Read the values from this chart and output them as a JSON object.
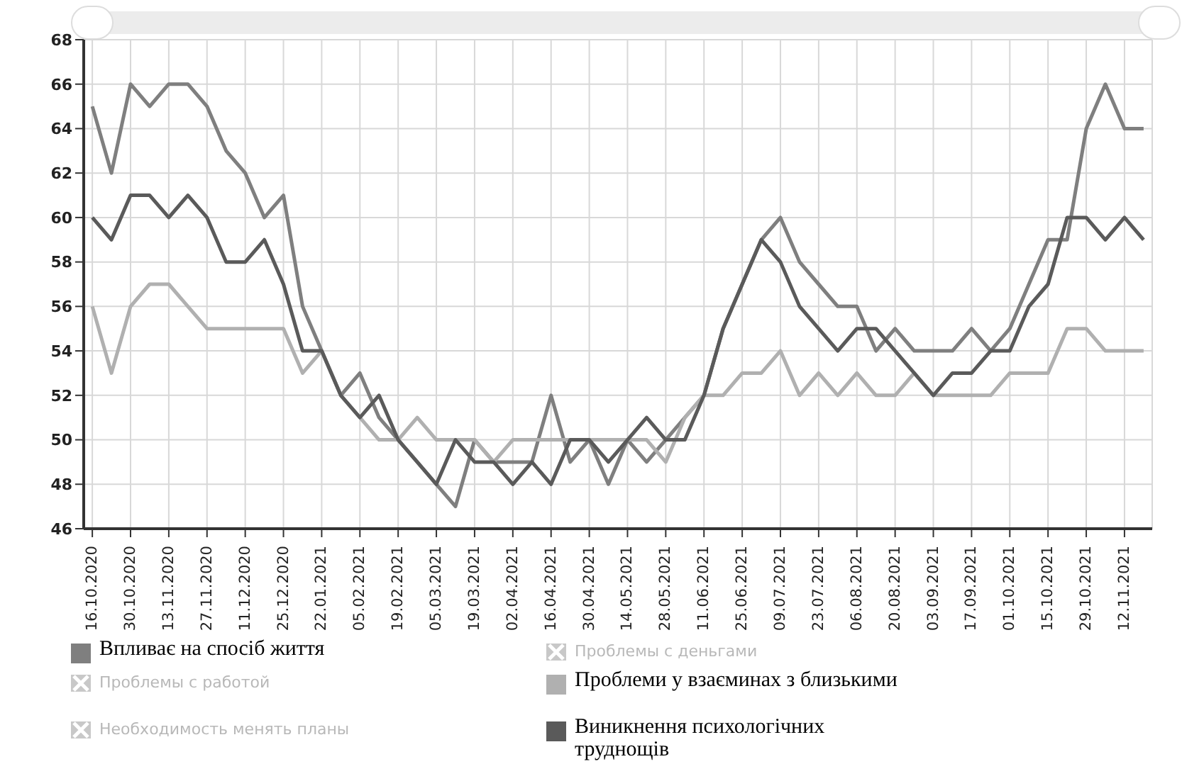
{
  "chart_data": {
    "type": "line",
    "categories": [
      "16.10.2020",
      null,
      "30.10.2020",
      null,
      "13.11.2020",
      null,
      "27.11.2020",
      null,
      "11.12.2020",
      null,
      "25.12.2020",
      null,
      "22.01.2021",
      null,
      "05.02.2021",
      null,
      "19.02.2021",
      null,
      "05.03.2021",
      null,
      "19.03.2021",
      null,
      "02.04.2021",
      null,
      "16.04.2021",
      null,
      "30.04.2021",
      null,
      "14.05.2021",
      null,
      "28.05.2021",
      null,
      "11.06.2021",
      null,
      "25.06.2021",
      null,
      "09.07.2021",
      null,
      "23.07.2021",
      null,
      "06.08.2021",
      null,
      "20.08.2021",
      null,
      "03.09.2021",
      null,
      "17.09.2021",
      null,
      "01.10.2021",
      null,
      "15.10.2021",
      null,
      "29.10.2021",
      null,
      "12.11.2021",
      null
    ],
    "series": [
      {
        "name": "Впливає на спосіб життя",
        "color": "#7f7f7f",
        "values": [
          65,
          62,
          66,
          65,
          66,
          66,
          65,
          63,
          62,
          60,
          61,
          56,
          54,
          52,
          53,
          51,
          50,
          49,
          48,
          47,
          50,
          49,
          49,
          49,
          52,
          49,
          50,
          48,
          50,
          49,
          50,
          51,
          52,
          55,
          57,
          59,
          60,
          58,
          57,
          56,
          56,
          54,
          55,
          54,
          54,
          54,
          55,
          54,
          55,
          57,
          59,
          59,
          64,
          66,
          64,
          64
        ]
      },
      {
        "name": "Проблемы с деньгами",
        "color": "#c8c8c8",
        "values": [
          null,
          null,
          null,
          null,
          null,
          null,
          null,
          null,
          null,
          null,
          null,
          null,
          null,
          null,
          null,
          null,
          null,
          null,
          null,
          null,
          null,
          null,
          null,
          null,
          null,
          null,
          null,
          null,
          null,
          null,
          null,
          null,
          null,
          null,
          null,
          null,
          null,
          null,
          null,
          null,
          null,
          null,
          null,
          null,
          null,
          null,
          null,
          null,
          null,
          null,
          null,
          null,
          null,
          null,
          null,
          null
        ]
      },
      {
        "name": "Проблемы с работой",
        "color": "#c8c8c8",
        "values": [
          null,
          null,
          null,
          null,
          null,
          null,
          null,
          null,
          null,
          null,
          null,
          null,
          null,
          null,
          null,
          null,
          null,
          null,
          null,
          null,
          null,
          null,
          null,
          null,
          null,
          null,
          null,
          null,
          null,
          null,
          null,
          null,
          null,
          null,
          null,
          null,
          null,
          null,
          null,
          null,
          null,
          null,
          null,
          null,
          null,
          null,
          null,
          null,
          null,
          null,
          null,
          null,
          null,
          null,
          null,
          null
        ]
      },
      {
        "name": "Проблеми у взаєминах з близькими",
        "color": "#b0b0b0",
        "values": [
          56,
          53,
          56,
          57,
          57,
          56,
          55,
          55,
          55,
          55,
          55,
          53,
          54,
          52,
          51,
          50,
          50,
          51,
          50,
          50,
          50,
          49,
          50,
          50,
          50,
          50,
          50,
          50,
          50,
          50,
          49,
          51,
          52,
          52,
          53,
          53,
          54,
          52,
          53,
          52,
          53,
          52,
          52,
          53,
          52,
          52,
          52,
          52,
          53,
          53,
          53,
          55,
          55,
          54,
          54,
          54
        ]
      },
      {
        "name": "Необходимость менять планы",
        "color": "#c8c8c8",
        "values": [
          null,
          null,
          null,
          null,
          null,
          null,
          null,
          null,
          null,
          null,
          null,
          null,
          null,
          null,
          null,
          null,
          null,
          null,
          null,
          null,
          null,
          null,
          null,
          null,
          null,
          null,
          null,
          null,
          null,
          null,
          null,
          null,
          null,
          null,
          null,
          null,
          null,
          null,
          null,
          null,
          null,
          null,
          null,
          null,
          null,
          null,
          null,
          null,
          null,
          null,
          null,
          null,
          null,
          null,
          null,
          null
        ]
      },
      {
        "name": "Виникнення психологічних труднощів",
        "color": "#5a5a5a",
        "values": [
          60,
          59,
          61,
          61,
          60,
          61,
          60,
          58,
          58,
          59,
          57,
          54,
          54,
          52,
          51,
          52,
          50,
          49,
          48,
          50,
          49,
          49,
          48,
          49,
          48,
          50,
          50,
          49,
          50,
          51,
          50,
          50,
          52,
          55,
          57,
          59,
          58,
          56,
          55,
          54,
          55,
          55,
          54,
          53,
          52,
          53,
          53,
          54,
          54,
          56,
          57,
          60,
          60,
          59,
          60,
          59
        ]
      }
    ],
    "ylim": [
      46,
      68
    ],
    "yticks": [
      46,
      48,
      50,
      52,
      54,
      56,
      58,
      60,
      62,
      64,
      66,
      68
    ],
    "grid": true,
    "legend": "bottom",
    "marker": "none",
    "line_style": "solid"
  }
}
